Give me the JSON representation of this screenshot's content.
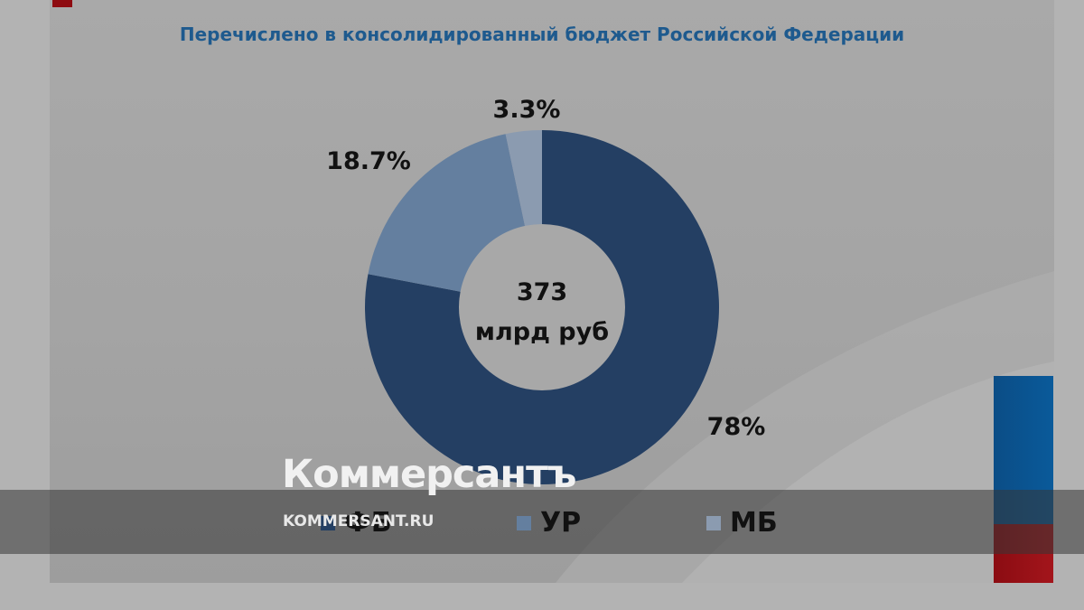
{
  "colors": {
    "fb": "#243f63",
    "ur": "#647f9f",
    "mb": "#8b9bb0",
    "title": "#1e5a8e",
    "flag_blue": "#0b4d86",
    "flag_red": "#8b0c12"
  },
  "chart_data": {
    "type": "pie",
    "donut": true,
    "title": "Перечислено в консолидированный бюджет Российской Федерации",
    "center_label": [
      "373",
      "млрд руб"
    ],
    "slices": [
      {
        "name": "ФБ",
        "value": 78,
        "label": "78%",
        "color": "#243f63"
      },
      {
        "name": "УР",
        "value": 18.7,
        "label": "18.7%",
        "color": "#647f9f"
      },
      {
        "name": "МБ",
        "value": 3.3,
        "label": "3.3%",
        "color": "#8b9bb0"
      }
    ],
    "legend_position": "bottom"
  },
  "watermark": {
    "brand": "Коммерсантъ",
    "url": "KOMMERSANT.RU"
  }
}
